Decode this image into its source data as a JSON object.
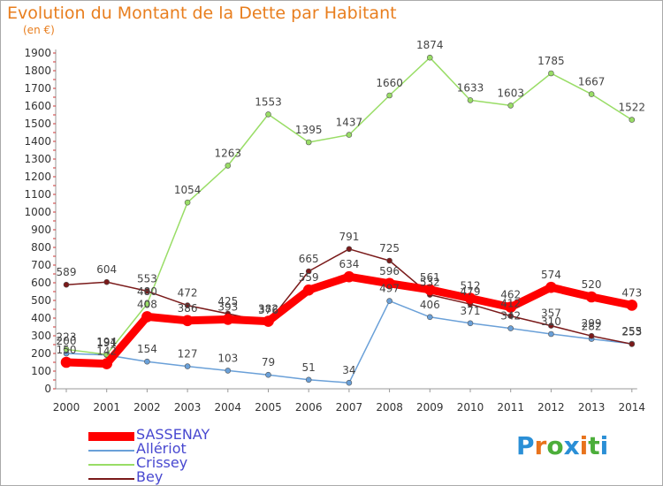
{
  "header": {
    "title": "Evolution du Montant de la Dette par Habitant",
    "unit": "(en €)"
  },
  "logo": {
    "text": "Proxiti",
    "colors": [
      "#2a8fd6",
      "#e8731c",
      "#4cae3a",
      "#2a8fd6",
      "#e8731c",
      "#4cae3a",
      "#2a8fd6"
    ]
  },
  "chart_data": {
    "type": "line",
    "title": "Evolution du Montant de la Dette par Habitant",
    "ylabel": "(en €)",
    "x": [
      "2000",
      "2001",
      "2002",
      "2003",
      "2004",
      "2005",
      "2006",
      "2007",
      "2008",
      "2009",
      "2010",
      "2011",
      "2012",
      "2013",
      "2014"
    ],
    "ylim": [
      0,
      1900
    ],
    "yticks": [
      0,
      100,
      200,
      300,
      400,
      500,
      600,
      700,
      800,
      900,
      1000,
      1100,
      1200,
      1300,
      1400,
      1500,
      1600,
      1700,
      1800,
      1900
    ],
    "grid": false,
    "legend_position": "bottom-left",
    "series": [
      {
        "name": "SASSENAY",
        "color": "#ff0000",
        "values": [
          150,
          142,
          408,
          386,
          393,
          382,
          559,
          634,
          596,
          561,
          512,
          462,
          574,
          520,
          473
        ]
      },
      {
        "name": "Allériot",
        "color": "#6aa0d8",
        "values": [
          200,
          191,
          154,
          127,
          103,
          79,
          51,
          34,
          497,
          406,
          371,
          342,
          310,
          282,
          255
        ]
      },
      {
        "name": "Crissey",
        "color": "#99dd66",
        "values": [
          223,
          194,
          480,
          1054,
          1263,
          1553,
          1395,
          1437,
          1660,
          1874,
          1633,
          1603,
          1785,
          1667,
          1522
        ]
      },
      {
        "name": "Bey",
        "color": "#7a1a1a",
        "values": [
          589,
          604,
          553,
          472,
          425,
          376,
          665,
          791,
          725,
          532,
          479,
          412,
          357,
          299,
          253
        ]
      }
    ]
  }
}
